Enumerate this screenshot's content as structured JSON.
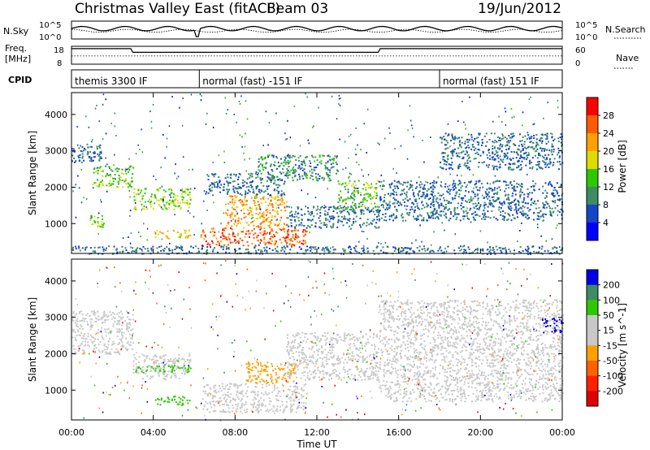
{
  "header": {
    "station": "Christmas Valley East (fitACF)",
    "beam": "Beam 03",
    "date": "19/Jun/2012"
  },
  "strip_panels": {
    "nsky": {
      "left_label": "N.Sky",
      "right_label": "N.Search",
      "left_ticks": [
        "10^5",
        "10^0"
      ],
      "right_ticks": [
        "10^5",
        "10^0"
      ]
    },
    "freq": {
      "left_label_1": "Freq.",
      "left_label_2": "[MHz]",
      "right_label": "Nave",
      "left_ticks": [
        "18",
        "8"
      ],
      "right_ticks": [
        "60",
        "0"
      ]
    },
    "cpid": {
      "label": "CPID",
      "segments": [
        {
          "label": "themis 3300 IF",
          "start_hour": 0
        },
        {
          "label": "normal (fast) -151 IF",
          "start_hour": 6.25
        },
        {
          "label": "normal (fast) 151 IF",
          "start_hour": 18
        }
      ]
    }
  },
  "x_axis": {
    "label": "Time UT",
    "range_hours": [
      0,
      24
    ],
    "ticks": [
      {
        "hour": 0,
        "label": "00:00"
      },
      {
        "hour": 4,
        "label": "04:00"
      },
      {
        "hour": 8,
        "label": "08:00"
      },
      {
        "hour": 12,
        "label": "12:00"
      },
      {
        "hour": 16,
        "label": "16:00"
      },
      {
        "hour": 20,
        "label": "20:00"
      },
      {
        "hour": 24,
        "label": "00:00"
      }
    ]
  },
  "y_axis": {
    "label": "Slant Range [km]",
    "range_km": [
      180,
      4600
    ],
    "ticks": [
      1000,
      2000,
      3000,
      4000
    ]
  },
  "power_colorbar": {
    "label": "Power [dB]",
    "ticks": [
      "28",
      "24",
      "20",
      "16",
      "12",
      "8",
      "4"
    ],
    "colors": [
      "#ff0000",
      "#ff5a00",
      "#ffa000",
      "#dcdc00",
      "#2ec800",
      "#3c8c64",
      "#1446c8",
      "#0000ff"
    ]
  },
  "velocity_colorbar": {
    "label": "Velocity [m s^-1]",
    "ticks": [
      "200",
      "100",
      "50",
      "15",
      "-15",
      "-50",
      "-100",
      "-200"
    ],
    "colors": [
      "#0000e6",
      "#3c8c64",
      "#2ec800",
      "#c8c8c8",
      "#c8c8c8",
      "#ffa000",
      "#ff6000",
      "#ff2000",
      "#e00000"
    ]
  },
  "chart_data": [
    {
      "type": "heatmap",
      "title": "Power [dB]",
      "xlabel": "Time UT",
      "ylabel": "Slant Range [km]",
      "x_unit": "hours UT",
      "xlim": [
        0,
        24
      ],
      "ylim": [
        180,
        4600
      ],
      "regions": [
        {
          "t0": 0.0,
          "t1": 1.5,
          "r0": 2700,
          "r1": 3200,
          "value": 8
        },
        {
          "t0": 1.0,
          "t1": 3.0,
          "r0": 2000,
          "r1": 2600,
          "value": 14
        },
        {
          "t0": 0.8,
          "t1": 1.6,
          "r0": 850,
          "r1": 1250,
          "value": 16
        },
        {
          "t0": 3.0,
          "t1": 5.8,
          "r0": 1400,
          "r1": 2000,
          "value": 16
        },
        {
          "t0": 4.0,
          "t1": 5.8,
          "r0": 600,
          "r1": 850,
          "value": 20
        },
        {
          "t0": 6.3,
          "t1": 11.5,
          "r0": 400,
          "r1": 900,
          "value": 26
        },
        {
          "t0": 7.5,
          "t1": 10.5,
          "r0": 900,
          "r1": 1800,
          "value": 22
        },
        {
          "t0": 6.5,
          "t1": 10.5,
          "r0": 1800,
          "r1": 2400,
          "value": 8
        },
        {
          "t0": 9.0,
          "t1": 13.0,
          "r0": 2200,
          "r1": 2900,
          "value": 10
        },
        {
          "t0": 13.0,
          "t1": 15.0,
          "r0": 1400,
          "r1": 2200,
          "value": 14
        },
        {
          "t0": 10.5,
          "t1": 15.0,
          "r0": 900,
          "r1": 1500,
          "value": 8
        },
        {
          "t0": 15.0,
          "t1": 24.0,
          "r0": 1100,
          "r1": 2200,
          "value": 8
        },
        {
          "t0": 18.0,
          "t1": 24.0,
          "r0": 2500,
          "r1": 3500,
          "value": 8
        },
        {
          "t0": 0.0,
          "t1": 24.0,
          "r0": 180,
          "r1": 400,
          "value": 8
        }
      ]
    },
    {
      "type": "heatmap",
      "title": "Velocity [m s^-1]",
      "xlabel": "Time UT",
      "ylabel": "Slant Range [km]",
      "x_unit": "hours UT",
      "xlim": [
        0,
        24
      ],
      "ylim": [
        180,
        4600
      ],
      "regions": [
        {
          "t0": 0.0,
          "t1": 3.0,
          "r0": 2000,
          "r1": 3200,
          "value": 0
        },
        {
          "t0": 3.0,
          "t1": 5.8,
          "r0": 1300,
          "r1": 2000,
          "value": 0
        },
        {
          "t0": 3.0,
          "t1": 5.8,
          "r0": 1500,
          "r1": 1700,
          "value": 50
        },
        {
          "t0": 4.0,
          "t1": 5.8,
          "r0": 600,
          "r1": 850,
          "value": 50
        },
        {
          "t0": 6.3,
          "t1": 11.5,
          "r0": 400,
          "r1": 1200,
          "value": 0
        },
        {
          "t0": 8.5,
          "t1": 11.0,
          "r0": 1200,
          "r1": 1800,
          "value": -50
        },
        {
          "t0": 10.5,
          "t1": 15.0,
          "r0": 1300,
          "r1": 2600,
          "value": 0
        },
        {
          "t0": 15.0,
          "t1": 24.0,
          "r0": 700,
          "r1": 3500,
          "value": 0
        },
        {
          "t0": 23.0,
          "t1": 24.0,
          "r0": 2600,
          "r1": 3000,
          "value": 200
        }
      ]
    }
  ]
}
